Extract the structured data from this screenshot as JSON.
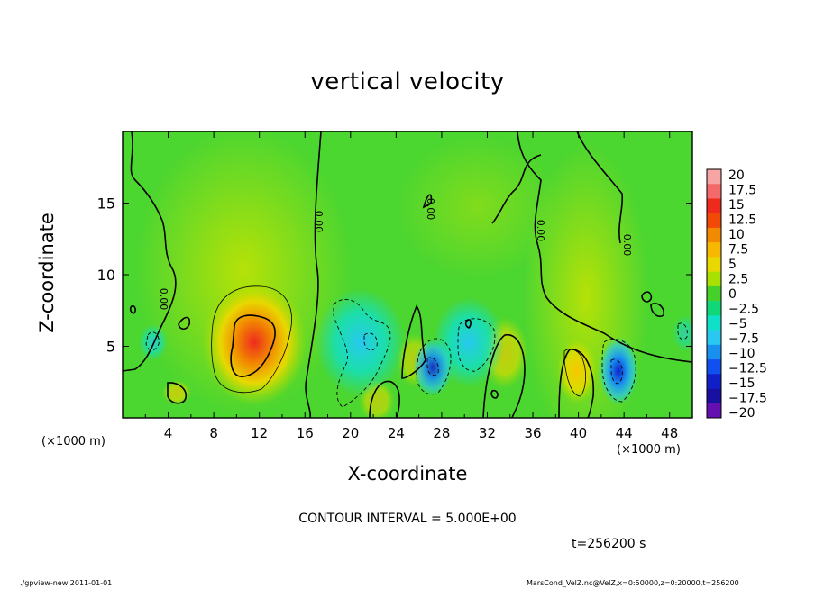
{
  "chart_data": {
    "type": "heatmap",
    "title": "vertical velocity",
    "xlabel": "X-coordinate",
    "ylabel": "Z-coordinate",
    "x_unit": "(×1000 m)",
    "y_unit": "(×1000 m)",
    "xlim": [
      0,
      50
    ],
    "ylim": [
      0,
      20
    ],
    "x_ticks": [
      "4",
      "8",
      "12",
      "16",
      "20",
      "24",
      "28",
      "32",
      "36",
      "40",
      "44",
      "48"
    ],
    "y_ticks": [
      "5",
      "10",
      "15"
    ],
    "colorbar": {
      "labels": [
        "20",
        "17.5",
        "15",
        "12.5",
        "10",
        "7.5",
        "5",
        "2.5",
        "0",
        "−2.5",
        "−5",
        "−7.5",
        "−10",
        "−12.5",
        "−15",
        "−17.5",
        "−20"
      ],
      "colors": [
        "#f7a4a4",
        "#f46a6a",
        "#ee2a1e",
        "#f24a06",
        "#f28a00",
        "#f6b800",
        "#e8d800",
        "#a8e000",
        "#46d02a",
        "#10d878",
        "#10e0c8",
        "#28c8f0",
        "#1890f0",
        "#1050f0",
        "#1020c8",
        "#1810a0",
        "#6410b0"
      ]
    },
    "contour_labels": [
      "0.00",
      "0.00",
      "0.00",
      "0.00",
      "0.00"
    ],
    "contour_interval": "CONTOUR INTERVAL = 5.000E+00",
    "time": "t=256200 s"
  },
  "footer": {
    "left": "./gpview-new   2011-01-01",
    "right": "MarsCond_VelZ.nc@VelZ,x=0:50000,z=0:20000,t=256200"
  }
}
